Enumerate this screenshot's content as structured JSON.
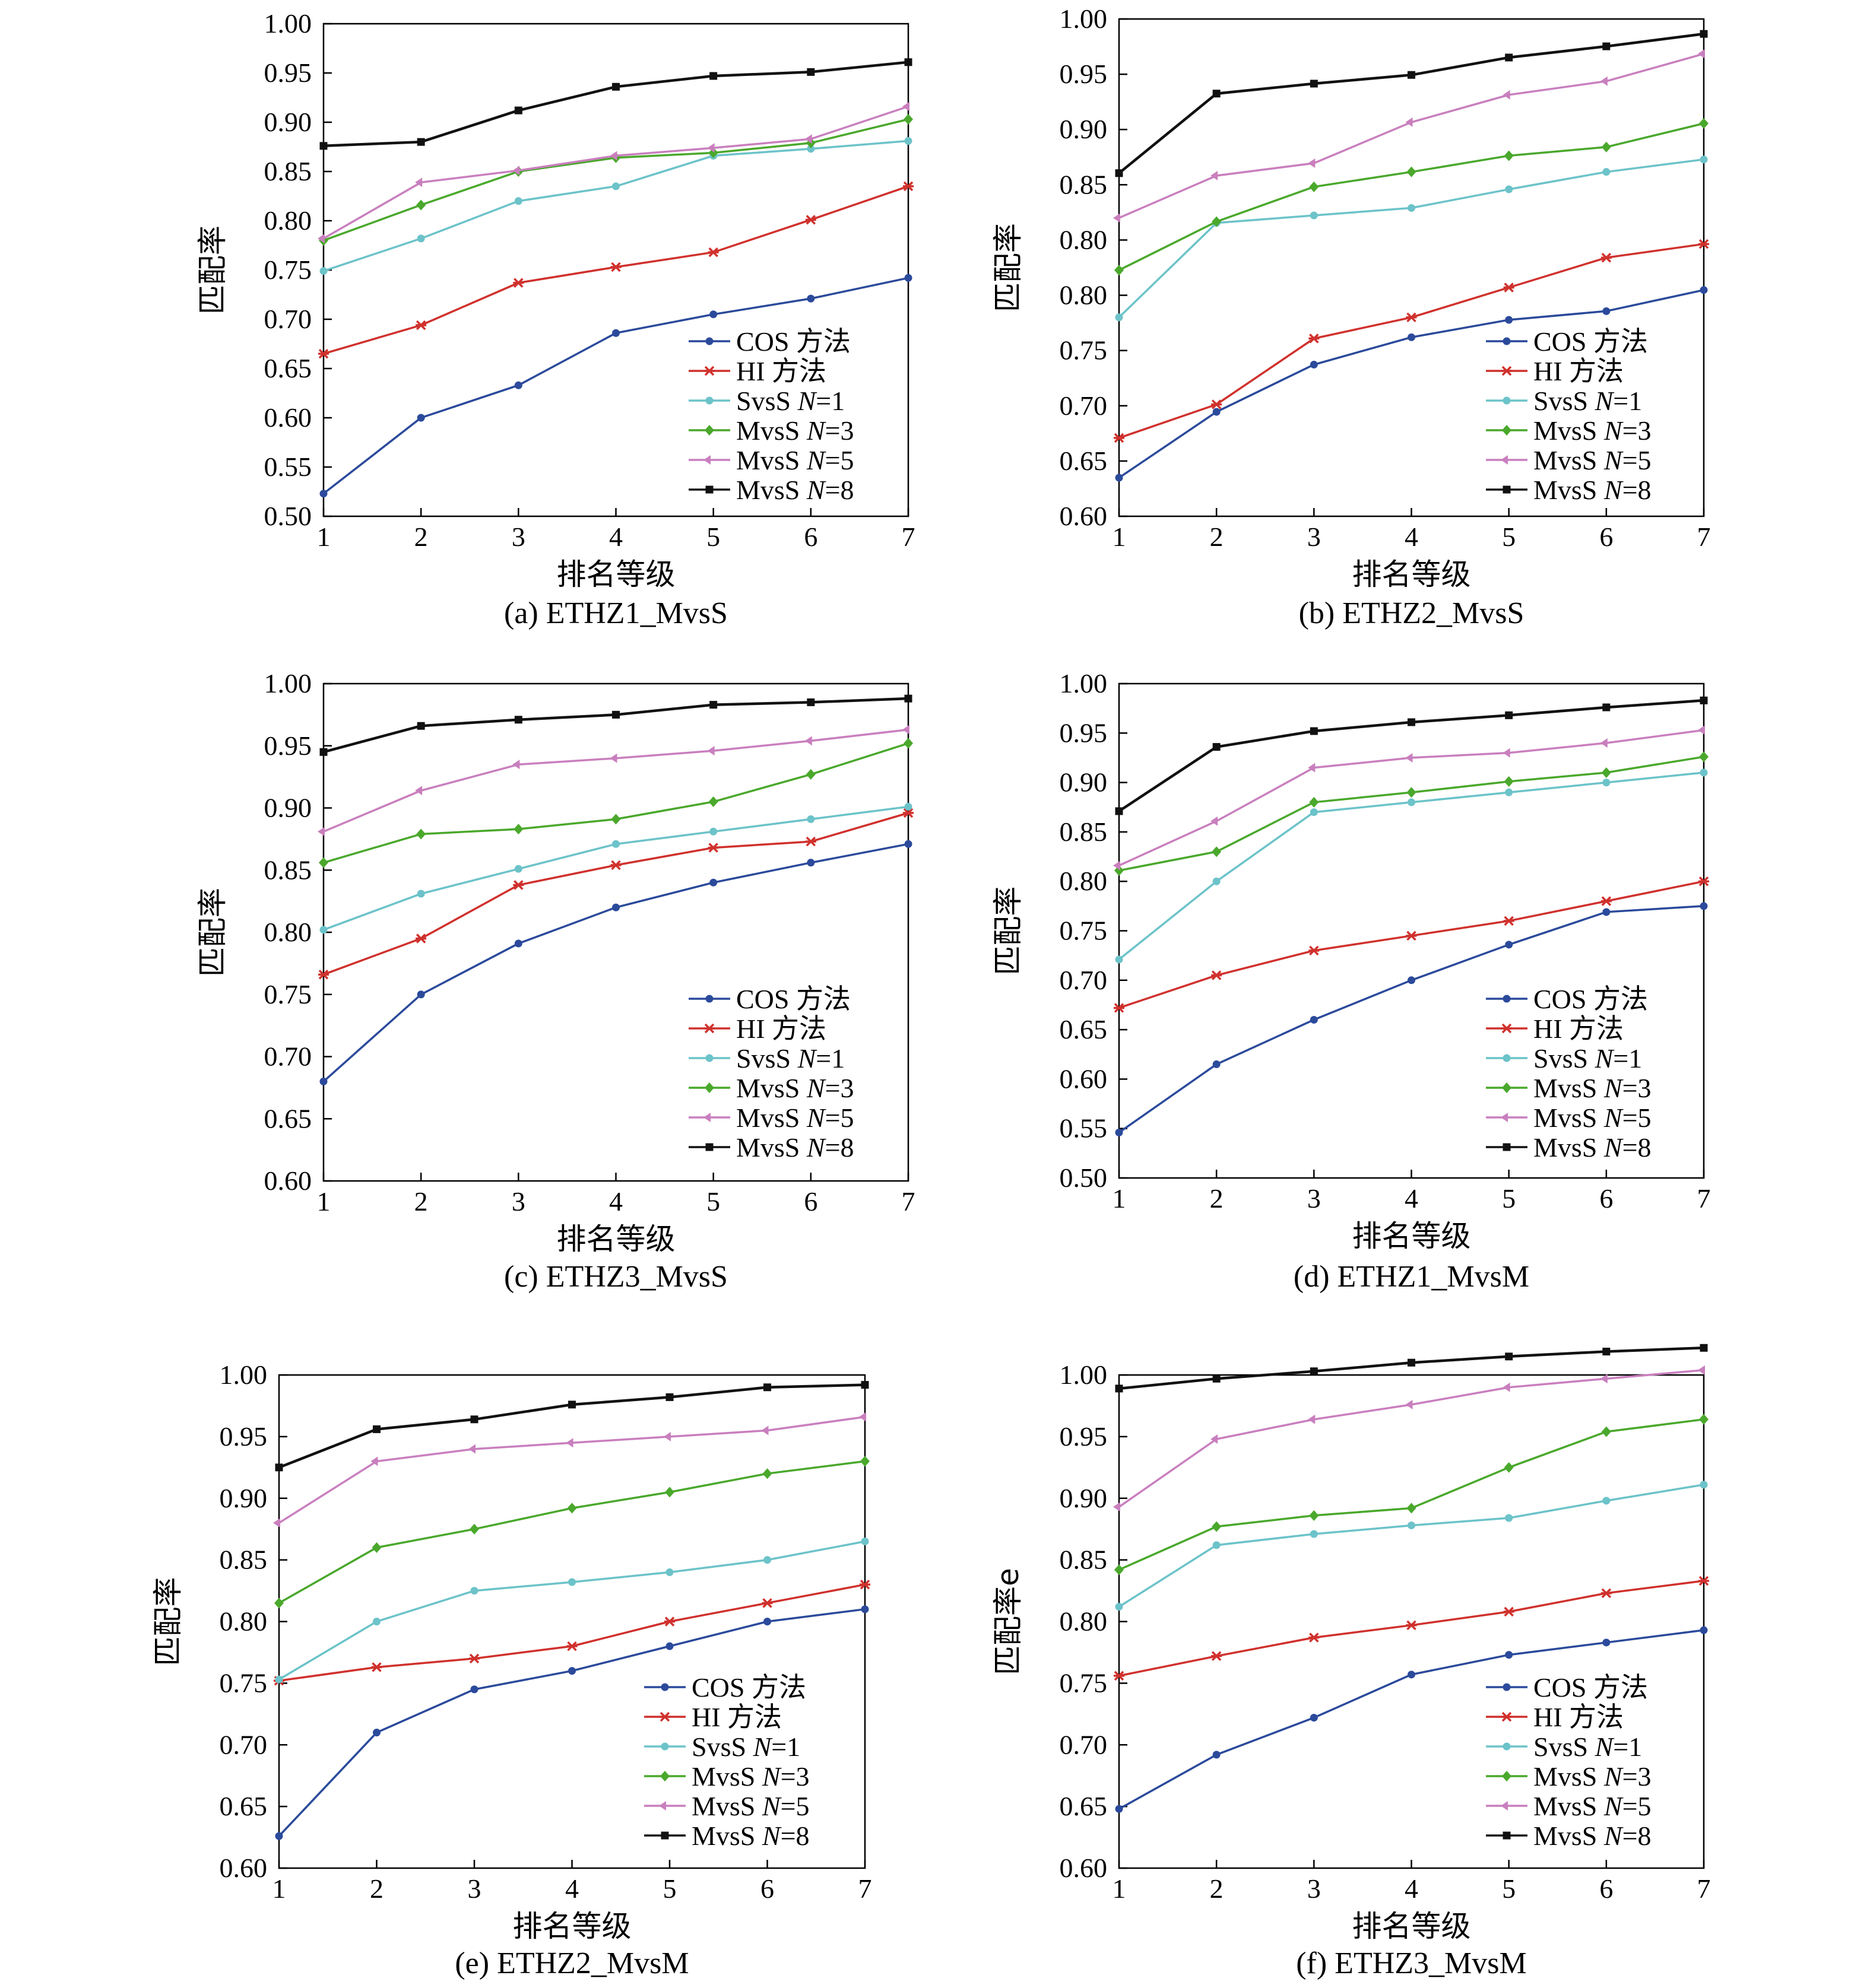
{
  "figure": {
    "colors": {
      "COS": "#2b4a9b",
      "HI": "#d0312d",
      "SvsS1": "#6cc3c9",
      "MvsS3": "#4aa82c",
      "MvsS5": "#c97fbe",
      "MvsS8": "#111111"
    }
  },
  "chart_data": [
    {
      "id": "a",
      "type": "line",
      "caption": "(a) ETHZ1_MvsS",
      "xlabel": "排名等级",
      "ylabel": "匹配率",
      "x": [
        1,
        2,
        3,
        4,
        5,
        6,
        7
      ],
      "yticks": [
        "0.50",
        "0.55",
        "0.60",
        "0.65",
        "0.70",
        "0.75",
        "0.80",
        "0.85",
        "0.90",
        "0.95",
        "1.00"
      ],
      "ylim": [
        0.5,
        1.0
      ],
      "series": [
        {
          "key": "COS",
          "name": "COS 方法",
          "values": [
            0.523,
            0.6,
            0.633,
            0.686,
            0.705,
            0.721,
            0.742
          ]
        },
        {
          "key": "HI",
          "name": "HI 方法",
          "values": [
            0.665,
            0.694,
            0.737,
            0.753,
            0.768,
            0.801,
            0.835
          ]
        },
        {
          "key": "SvsS1",
          "name": "SvsS N=1",
          "values": [
            0.749,
            0.782,
            0.82,
            0.835,
            0.866,
            0.873,
            0.881
          ]
        },
        {
          "key": "MvsS3",
          "name": "MvsS N=3",
          "values": [
            0.78,
            0.816,
            0.85,
            0.864,
            0.869,
            0.879,
            0.903
          ]
        },
        {
          "key": "MvsS5",
          "name": "MvsS N=5",
          "values": [
            0.782,
            0.839,
            0.851,
            0.866,
            0.874,
            0.883,
            0.916
          ]
        },
        {
          "key": "MvsS8",
          "name": "MvsS N=8",
          "values": [
            0.876,
            0.88,
            0.912,
            0.936,
            0.947,
            0.951,
            0.961
          ]
        }
      ]
    },
    {
      "id": "b",
      "type": "line",
      "caption": "(b) ETHZ2_MvsS",
      "xlabel": "排名等级",
      "ylabel": "匹配率",
      "x": [
        1,
        2,
        3,
        4,
        5,
        6,
        7
      ],
      "yticks": [
        "0.60",
        "0.65",
        "0.70",
        "0.75",
        "0.80",
        "0.80",
        "0.85",
        "0.90",
        "0.95",
        "1.00"
      ],
      "ylim": [
        0.6,
        1.0
      ],
      "series": [
        {
          "key": "COS",
          "name": "COS 方法",
          "values": [
            0.631,
            0.684,
            0.722,
            0.744,
            0.758,
            0.765,
            0.782
          ]
        },
        {
          "key": "HI",
          "name": "HI 方法",
          "values": [
            0.663,
            0.69,
            0.743,
            0.76,
            0.784,
            0.808,
            0.819
          ]
        },
        {
          "key": "SvsS1",
          "name": "SvsS N=1",
          "values": [
            0.76,
            0.836,
            0.842,
            0.848,
            0.863,
            0.877,
            0.887
          ]
        },
        {
          "key": "MvsS3",
          "name": "MvsS N=3",
          "values": [
            0.798,
            0.837,
            0.865,
            0.877,
            0.89,
            0.897,
            0.916
          ]
        },
        {
          "key": "MvsS5",
          "name": "MvsS N=5",
          "values": [
            0.84,
            0.874,
            0.884,
            0.917,
            0.939,
            0.95,
            0.972
          ]
        },
        {
          "key": "MvsS8",
          "name": "MvsS N=8",
          "values": [
            0.876,
            0.94,
            0.948,
            0.955,
            0.969,
            0.978,
            0.988
          ]
        }
      ]
    },
    {
      "id": "c",
      "type": "line",
      "caption": "(c) ETHZ3_MvsS",
      "xlabel": "排名等级",
      "ylabel": "匹配率",
      "x": [
        1,
        2,
        3,
        4,
        5,
        6,
        7
      ],
      "yticks": [
        "0.60",
        "0.65",
        "0.70",
        "0.75",
        "0.80",
        "0.85",
        "0.90",
        "0.95",
        "1.00"
      ],
      "ylim": [
        0.6,
        1.0
      ],
      "series": [
        {
          "key": "COS",
          "name": "COS 方法",
          "values": [
            0.68,
            0.75,
            0.791,
            0.82,
            0.84,
            0.856,
            0.871
          ]
        },
        {
          "key": "HI",
          "name": "HI 方法",
          "values": [
            0.766,
            0.795,
            0.838,
            0.854,
            0.868,
            0.873,
            0.896
          ]
        },
        {
          "key": "SvsS1",
          "name": "SvsS N=1",
          "values": [
            0.802,
            0.831,
            0.851,
            0.871,
            0.881,
            0.891,
            0.901
          ]
        },
        {
          "key": "MvsS3",
          "name": "MvsS N=3",
          "values": [
            0.856,
            0.879,
            0.883,
            0.891,
            0.905,
            0.927,
            0.952
          ]
        },
        {
          "key": "MvsS5",
          "name": "MvsS N=5",
          "values": [
            0.881,
            0.914,
            0.935,
            0.94,
            0.946,
            0.954,
            0.963
          ]
        },
        {
          "key": "MvsS8",
          "name": "MvsS N=8",
          "values": [
            0.945,
            0.966,
            0.971,
            0.975,
            0.983,
            0.985,
            0.988
          ]
        }
      ]
    },
    {
      "id": "d",
      "type": "line",
      "caption": "(d) ETHZ1_MvsM",
      "xlabel": "排名等级",
      "ylabel": "匹配率",
      "x": [
        1,
        2,
        3,
        4,
        5,
        6,
        7
      ],
      "yticks": [
        "0.50",
        "0.55",
        "0.60",
        "0.65",
        "0.70",
        "0.75",
        "0.80",
        "0.85",
        "0.90",
        "0.95",
        "1.00"
      ],
      "ylim": [
        0.5,
        1.0
      ],
      "series": [
        {
          "key": "COS",
          "name": "COS 方法",
          "values": [
            0.546,
            0.615,
            0.66,
            0.7,
            0.736,
            0.769,
            0.775
          ]
        },
        {
          "key": "HI",
          "name": "HI 方法",
          "values": [
            0.672,
            0.705,
            0.73,
            0.745,
            0.76,
            0.78,
            0.8
          ]
        },
        {
          "key": "SvsS1",
          "name": "SvsS N=1",
          "values": [
            0.721,
            0.8,
            0.87,
            0.88,
            0.89,
            0.9,
            0.91
          ]
        },
        {
          "key": "MvsS3",
          "name": "MvsS N=3",
          "values": [
            0.811,
            0.83,
            0.88,
            0.89,
            0.901,
            0.91,
            0.926
          ]
        },
        {
          "key": "MvsS5",
          "name": "MvsS N=5",
          "values": [
            0.816,
            0.861,
            0.915,
            0.925,
            0.93,
            0.94,
            0.953
          ]
        },
        {
          "key": "MvsS8",
          "name": "MvsS N=8",
          "values": [
            0.871,
            0.936,
            0.952,
            0.961,
            0.968,
            0.976,
            0.983
          ]
        }
      ]
    },
    {
      "id": "e",
      "type": "line",
      "caption": "(e) ETHZ2_MvsM",
      "xlabel": "排名等级",
      "ylabel": "匹配率",
      "x": [
        1,
        2,
        3,
        4,
        5,
        6,
        7
      ],
      "yticks": [
        "0.60",
        "0.65",
        "0.70",
        "0.75",
        "0.80",
        "0.85",
        "0.90",
        "0.95",
        "1.00"
      ],
      "ylim": [
        0.6,
        1.0
      ],
      "series": [
        {
          "key": "COS",
          "name": "COS 方法",
          "values": [
            0.626,
            0.71,
            0.745,
            0.76,
            0.78,
            0.8,
            0.81
          ]
        },
        {
          "key": "HI",
          "name": "HI 方法",
          "values": [
            0.752,
            0.763,
            0.77,
            0.78,
            0.8,
            0.815,
            0.83
          ]
        },
        {
          "key": "SvsS1",
          "name": "SvsS N=1",
          "values": [
            0.753,
            0.8,
            0.825,
            0.832,
            0.84,
            0.85,
            0.865
          ]
        },
        {
          "key": "MvsS3",
          "name": "MvsS N=3",
          "values": [
            0.815,
            0.86,
            0.875,
            0.892,
            0.905,
            0.92,
            0.93
          ]
        },
        {
          "key": "MvsS5",
          "name": "MvsS N=5",
          "values": [
            0.88,
            0.93,
            0.94,
            0.945,
            0.95,
            0.955,
            0.966
          ]
        },
        {
          "key": "MvsS8",
          "name": "MvsS N=8",
          "values": [
            0.925,
            0.956,
            0.964,
            0.976,
            0.982,
            0.99,
            0.992
          ]
        }
      ]
    },
    {
      "id": "f",
      "type": "line",
      "caption": "(f) ETHZ3_MvsM",
      "xlabel": "排名等级",
      "ylabel": "匹配率e",
      "x": [
        1,
        2,
        3,
        4,
        5,
        6,
        7
      ],
      "yticks": [
        "0.60",
        "0.65",
        "0.70",
        "0.75",
        "0.80",
        "0.85",
        "0.90",
        "0.95",
        "1.00"
      ],
      "ylim": [
        0.6,
        1.0
      ],
      "series": [
        {
          "key": "COS",
          "name": "COS 方法",
          "values": [
            0.648,
            0.692,
            0.722,
            0.757,
            0.773,
            0.783,
            0.793
          ]
        },
        {
          "key": "HI",
          "name": "HI 方法",
          "values": [
            0.756,
            0.772,
            0.787,
            0.797,
            0.808,
            0.823,
            0.833
          ]
        },
        {
          "key": "SvsS1",
          "name": "SvsS N=1",
          "values": [
            0.812,
            0.862,
            0.871,
            0.878,
            0.884,
            0.898,
            0.911
          ]
        },
        {
          "key": "MvsS3",
          "name": "MvsS N=3",
          "values": [
            0.842,
            0.877,
            0.886,
            0.892,
            0.925,
            0.954,
            0.964
          ]
        },
        {
          "key": "MvsS5",
          "name": "MvsS N=5",
          "values": [
            0.893,
            0.948,
            0.964,
            0.976,
            0.99,
            0.997,
            1.004
          ]
        },
        {
          "key": "MvsS8",
          "name": "MvsS N=8",
          "values": [
            0.989,
            0.997,
            1.003,
            1.01,
            1.015,
            1.019,
            1.022
          ]
        }
      ]
    }
  ]
}
